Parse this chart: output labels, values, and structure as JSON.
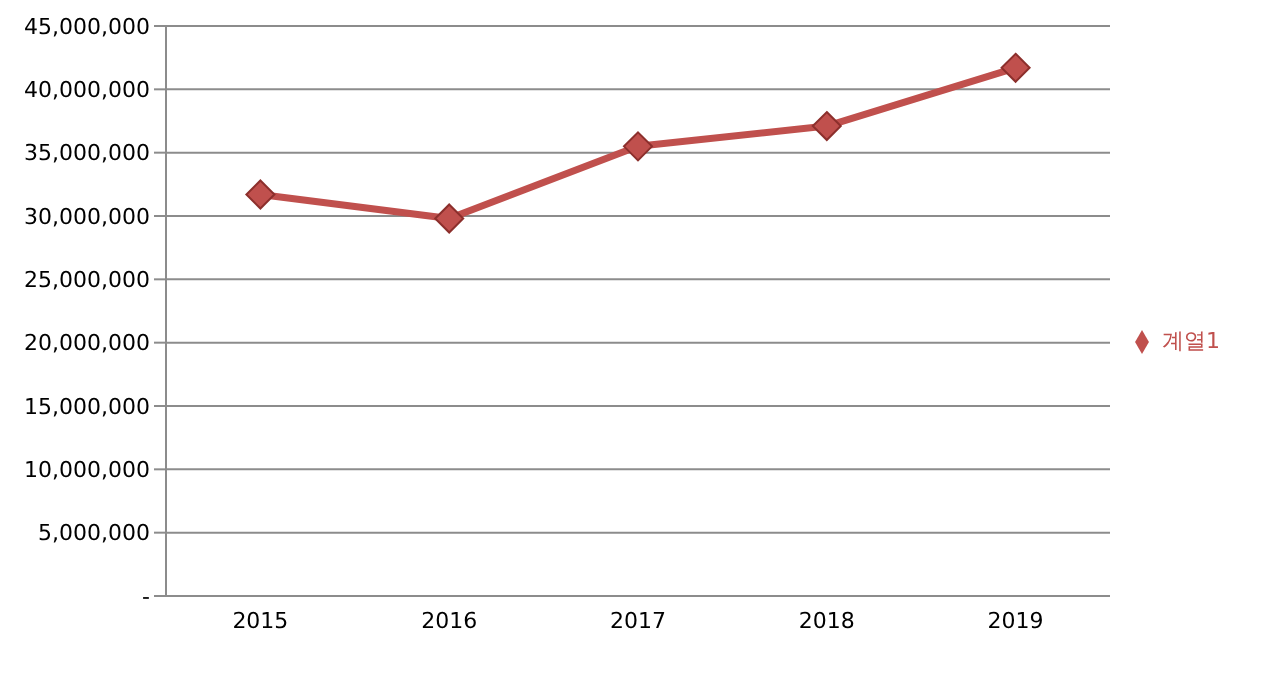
{
  "chart_data": {
    "type": "line",
    "categories": [
      "2015",
      "2016",
      "2017",
      "2018",
      "2019"
    ],
    "series": [
      {
        "name": "계열1",
        "color": "#c0504d",
        "values": [
          31700000,
          29800000,
          35500000,
          37100000,
          41700000
        ]
      }
    ],
    "ylim": [
      0,
      45000000
    ],
    "yticks": [
      {
        "value": 0,
        "label": "-"
      },
      {
        "value": 5000000,
        "label": "5,000,000"
      },
      {
        "value": 10000000,
        "label": "10,000,000"
      },
      {
        "value": 15000000,
        "label": "15,000,000"
      },
      {
        "value": 20000000,
        "label": "20,000,000"
      },
      {
        "value": 25000000,
        "label": "25,000,000"
      },
      {
        "value": 30000000,
        "label": "30,000,000"
      },
      {
        "value": 35000000,
        "label": "35,000,000"
      },
      {
        "value": 40000000,
        "label": "40,000,000"
      },
      {
        "value": 45000000,
        "label": "45,000,000"
      }
    ],
    "grid": "y",
    "legend": "right",
    "marker": "diamond",
    "line_style": "solid"
  }
}
